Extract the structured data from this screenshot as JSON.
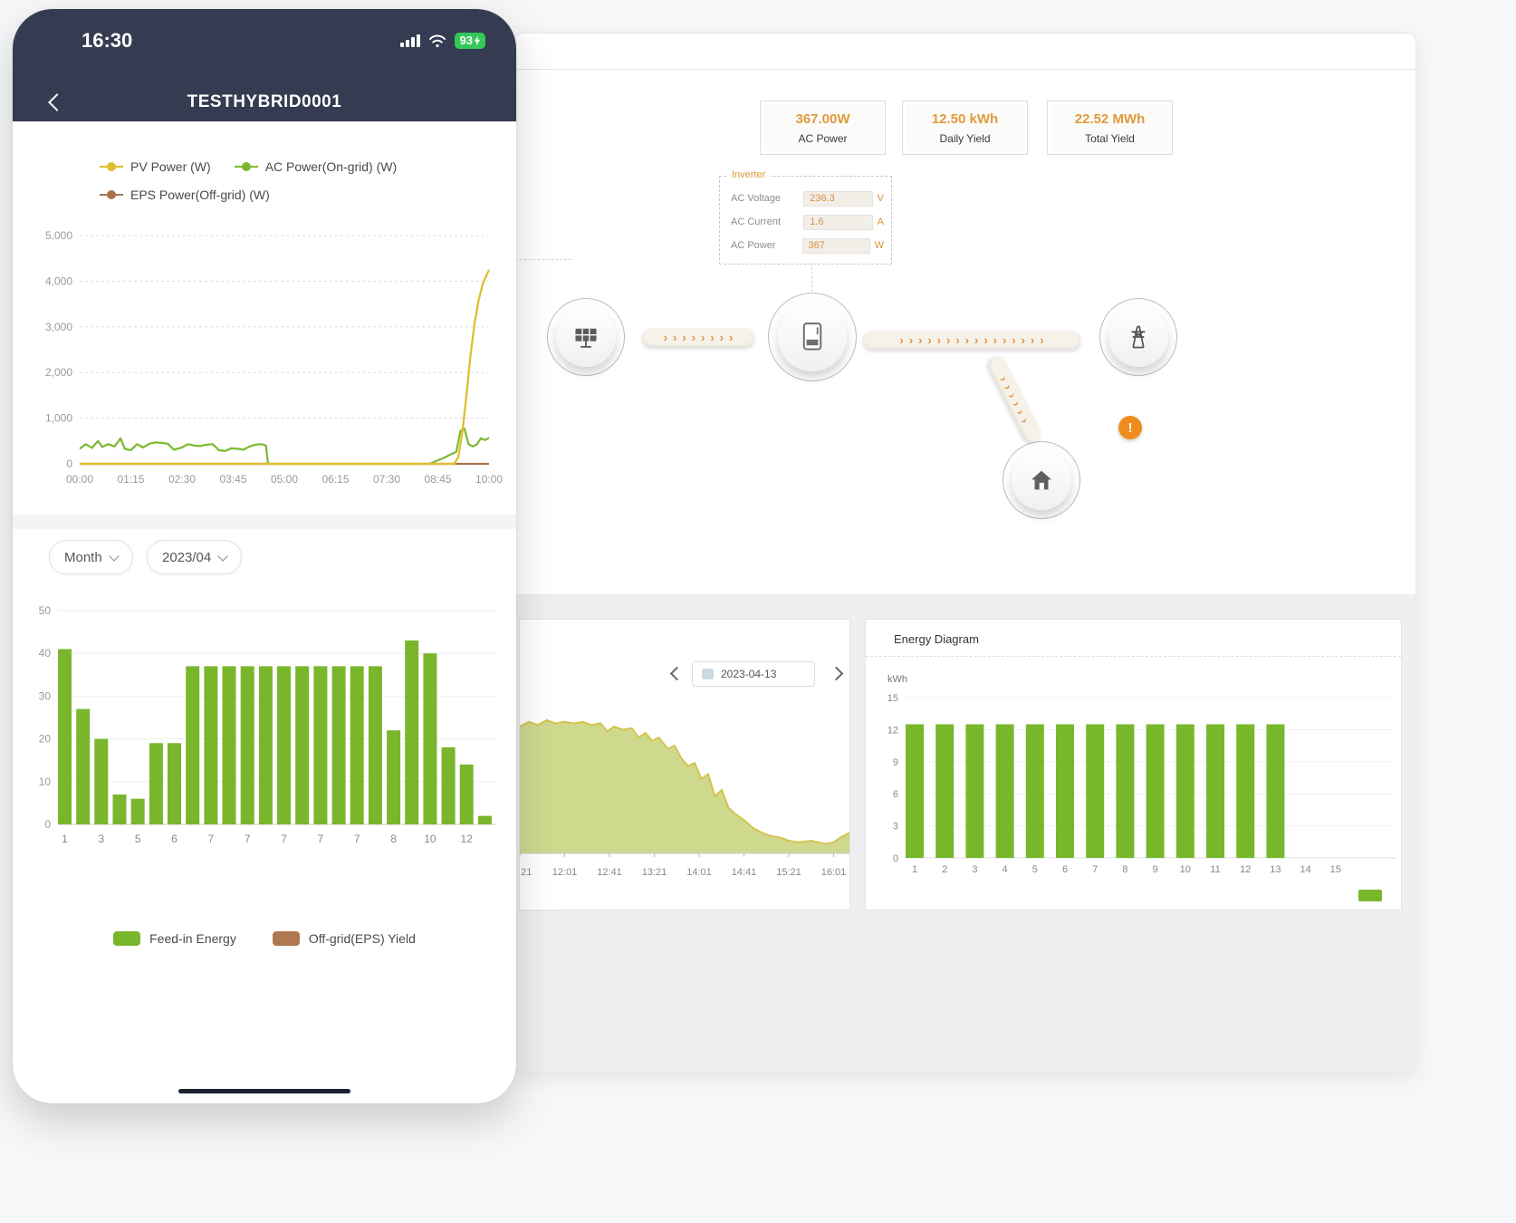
{
  "phone": {
    "status": {
      "time": "16:30",
      "battery_percent": "93"
    },
    "nav": {
      "title": "TESTHYBRID0001"
    },
    "selectors": {
      "period": "Month",
      "month": "2023/04"
    }
  },
  "dashboard": {
    "stats": [
      {
        "value": "367.00W",
        "label": "AC Power"
      },
      {
        "value": "12.50 kWh",
        "label": "Daily Yield"
      },
      {
        "value": "22.52 MWh",
        "label": "Total Yield"
      }
    ],
    "inverter": {
      "title": "Inverter",
      "rows": [
        {
          "label": "AC Voltage",
          "value": "236.3",
          "unit": "V"
        },
        {
          "label": "AC Current",
          "value": "1.6",
          "unit": "A"
        },
        {
          "label": "AC Power",
          "value": "367",
          "unit": "W"
        }
      ]
    },
    "flow_nodes": [
      "solar-panel",
      "inverter",
      "power-grid",
      "house"
    ],
    "warning_mark": "!",
    "day_panel": {
      "date": "2023-04-13"
    },
    "energy_panel": {
      "title": "Energy Diagram",
      "unit_label": "kWh"
    }
  },
  "chart_data": [
    {
      "id": "pv_power_line",
      "type": "line",
      "location": "phone-top",
      "x_unit": "time of day (hours 0-10)",
      "ylim": [
        0,
        5000
      ],
      "ytick_labels": [
        "0",
        "1,000",
        "2,000",
        "3,000",
        "4,000",
        "5,000"
      ],
      "xtick_labels": [
        "00:00",
        "01:15",
        "02:30",
        "03:45",
        "05:00",
        "06:15",
        "07:30",
        "08:45",
        "10:00"
      ],
      "legend_position": "top",
      "grid": "dashed horizontal",
      "series": [
        {
          "name": "PV Power (W)",
          "color": "#e0bd2a",
          "points": [
            [
              0,
              0
            ],
            [
              9.15,
              0
            ],
            [
              9.25,
              150
            ],
            [
              9.35,
              700
            ],
            [
              9.45,
              1500
            ],
            [
              9.55,
              2400
            ],
            [
              9.65,
              3100
            ],
            [
              9.75,
              3600
            ],
            [
              9.85,
              3950
            ],
            [
              9.95,
              4150
            ],
            [
              10,
              4250
            ]
          ]
        },
        {
          "name": "AC Power(On-grid) (W)",
          "color": "#7cb82f",
          "points": [
            [
              0,
              330
            ],
            [
              0.15,
              430
            ],
            [
              0.3,
              350
            ],
            [
              0.45,
              500
            ],
            [
              0.55,
              370
            ],
            [
              0.7,
              430
            ],
            [
              0.85,
              380
            ],
            [
              1.0,
              560
            ],
            [
              1.1,
              330
            ],
            [
              1.25,
              300
            ],
            [
              1.4,
              430
            ],
            [
              1.55,
              360
            ],
            [
              1.7,
              440
            ],
            [
              1.85,
              470
            ],
            [
              2.0,
              460
            ],
            [
              2.15,
              440
            ],
            [
              2.3,
              310
            ],
            [
              2.5,
              360
            ],
            [
              2.65,
              430
            ],
            [
              2.8,
              400
            ],
            [
              2.95,
              390
            ],
            [
              3.1,
              420
            ],
            [
              3.25,
              430
            ],
            [
              3.4,
              300
            ],
            [
              3.55,
              280
            ],
            [
              3.7,
              340
            ],
            [
              3.85,
              330
            ],
            [
              4.0,
              310
            ],
            [
              4.15,
              380
            ],
            [
              4.3,
              420
            ],
            [
              4.45,
              430
            ],
            [
              4.55,
              400
            ],
            [
              4.6,
              0
            ],
            [
              8.55,
              0
            ],
            [
              8.7,
              60
            ],
            [
              8.9,
              130
            ],
            [
              9.05,
              200
            ],
            [
              9.2,
              260
            ],
            [
              9.3,
              720
            ],
            [
              9.4,
              770
            ],
            [
              9.5,
              430
            ],
            [
              9.6,
              380
            ],
            [
              9.7,
              420
            ],
            [
              9.8,
              560
            ],
            [
              9.9,
              520
            ],
            [
              10,
              570
            ]
          ]
        },
        {
          "name": "EPS Power(Off-grid) (W)",
          "color": "#a9734f",
          "points": [
            [
              0,
              0
            ],
            [
              10,
              0
            ]
          ]
        }
      ]
    },
    {
      "id": "monthly_energy_bar",
      "type": "bar",
      "location": "phone-bottom",
      "period": "Month",
      "month": "2023/04",
      "ylim": [
        0,
        50
      ],
      "ytick_labels": [
        "0",
        "10",
        "20",
        "30",
        "40",
        "50"
      ],
      "values": [
        41,
        27,
        20,
        7,
        6,
        19,
        19,
        37,
        37,
        37,
        37,
        37,
        37,
        37,
        37,
        37,
        37,
        37,
        22,
        43,
        40,
        18,
        14,
        2
      ],
      "xtick_labels_shown": [
        "1",
        "3",
        "5",
        "6",
        "7",
        "7",
        "7",
        "7",
        "7",
        "8",
        "10",
        "12"
      ],
      "bar_color": "#7ab62c",
      "legend": [
        {
          "label": "Feed-in Energy",
          "color": "#7ab62c"
        },
        {
          "label": "Off-grid(EPS) Yield",
          "color": "#b0784f"
        }
      ]
    },
    {
      "id": "daily_power_area",
      "type": "area",
      "location": "dashboard-bottom-left",
      "date": "2023-04-13",
      "xtick_labels": [
        "11:21",
        "12:01",
        "12:41",
        "13:21",
        "14:01",
        "14:41",
        "15:21",
        "16:01"
      ],
      "fill_color": "#ccd788",
      "line_color": "#d3c44d",
      "y_unit": "percent of plot height",
      "points": [
        [
          0,
          80
        ],
        [
          0.2,
          83
        ],
        [
          0.4,
          81
        ],
        [
          0.6,
          84
        ],
        [
          0.8,
          82
        ],
        [
          1.0,
          83
        ],
        [
          1.2,
          82
        ],
        [
          1.4,
          83
        ],
        [
          1.6,
          81
        ],
        [
          1.8,
          82
        ],
        [
          1.95,
          77
        ],
        [
          2.1,
          80
        ],
        [
          2.3,
          78
        ],
        [
          2.5,
          79
        ],
        [
          2.65,
          73
        ],
        [
          2.8,
          76
        ],
        [
          2.95,
          71
        ],
        [
          3.1,
          73
        ],
        [
          3.3,
          66
        ],
        [
          3.45,
          68
        ],
        [
          3.6,
          60
        ],
        [
          3.75,
          55
        ],
        [
          3.9,
          57
        ],
        [
          4.05,
          47
        ],
        [
          4.2,
          50
        ],
        [
          4.35,
          36
        ],
        [
          4.5,
          40
        ],
        [
          4.65,
          29
        ],
        [
          4.8,
          25
        ],
        [
          5.0,
          21
        ],
        [
          5.2,
          16
        ],
        [
          5.4,
          13
        ],
        [
          5.6,
          11
        ],
        [
          5.8,
          10
        ],
        [
          6.0,
          8
        ],
        [
          6.2,
          7
        ],
        [
          6.5,
          8
        ],
        [
          6.8,
          6
        ],
        [
          7.0,
          7
        ],
        [
          7.15,
          10
        ],
        [
          7.35,
          13
        ]
      ]
    },
    {
      "id": "energy_diagram_bar",
      "type": "bar",
      "location": "dashboard-bottom-right",
      "title": "Energy Diagram",
      "ylabel": "kWh",
      "ylim": [
        0,
        15
      ],
      "ytick_labels": [
        "0",
        "3",
        "6",
        "9",
        "12",
        "15"
      ],
      "categories": [
        "1",
        "2",
        "3",
        "4",
        "5",
        "6",
        "7",
        "8",
        "9",
        "10",
        "11",
        "12",
        "13",
        "14",
        "15"
      ],
      "values": [
        12.5,
        12.5,
        12.5,
        12.5,
        12.5,
        12.5,
        12.5,
        12.5,
        12.5,
        12.5,
        12.5,
        12.5,
        12.5,
        null,
        null
      ],
      "bar_color": "#76b82a"
    }
  ]
}
